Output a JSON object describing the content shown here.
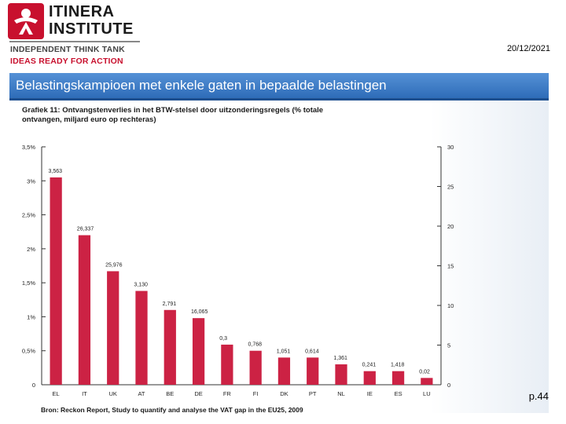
{
  "header": {
    "logo_line1": "ITINERA",
    "logo_line2": "INSTITUTE",
    "tagline1": "INDEPENDENT THINK TANK",
    "tagline2": "IDEAS READY FOR ACTION",
    "date": "20/12/2021"
  },
  "slide": {
    "title": "Belastingskampioen met enkele gaten in bepaalde belastingen",
    "page_number": "p.44"
  },
  "colors": {
    "bar": "#cc2244",
    "title_bar": "#3a78c3",
    "logo_red": "#c8102e"
  },
  "chart_data": {
    "type": "bar",
    "title": "Grafiek 11: Ontvangstenverlies in het BTW-stelsel door uitzonderingsregels (% totale ontvangen, miljard euro op rechteras)",
    "categories": [
      "EL",
      "IT",
      "UK",
      "AT",
      "BE",
      "DE",
      "FR",
      "FI",
      "DK",
      "PT",
      "NL",
      "IE",
      "ES",
      "LU"
    ],
    "values": [
      3.05,
      2.2,
      1.67,
      1.38,
      1.1,
      0.98,
      0.59,
      0.5,
      0.4,
      0.4,
      0.3,
      0.2,
      0.2,
      0.1
    ],
    "data_labels": [
      "3,563",
      "26,337",
      "25,976",
      "3,130",
      "2,791",
      "16,065",
      "0,3",
      "0,768",
      "1,051",
      "0,614",
      "1,361",
      "0,241",
      "1,418",
      "0,02"
    ],
    "ylim": [
      0,
      3.5
    ],
    "y_ticks": [
      0,
      0.5,
      1,
      1.5,
      2,
      2.5,
      3,
      3.5
    ],
    "y_tick_labels": [
      "0",
      "0,5%",
      "1%",
      "1,5%",
      "2%",
      "2,5%",
      "3%",
      "3,5%"
    ],
    "y2lim": [
      0,
      30
    ],
    "y2_ticks": [
      0,
      5,
      10,
      15,
      20,
      25,
      30
    ],
    "y2_tick_labels": [
      "0",
      "5",
      "10",
      "15",
      "20",
      "25",
      "30"
    ],
    "grid": false,
    "source": "Bron: Reckon Report, Study to quantify and analyse the VAT gap in the EU25, 2009"
  }
}
